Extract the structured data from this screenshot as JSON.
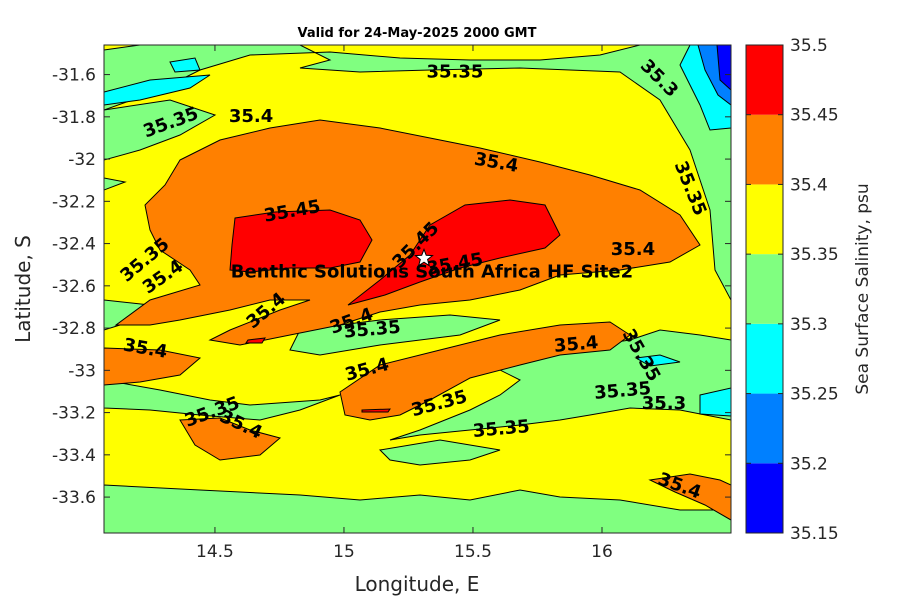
{
  "chart_data": {
    "type": "contour",
    "title": "Valid for 24-May-2025 2000 GMT",
    "xlabel": "Longitude, E",
    "ylabel": "Latitude, S",
    "xlim": [
      14.07,
      16.5
    ],
    "ylim": [
      -33.77,
      -31.46
    ],
    "xticks": [
      14.5,
      15,
      15.5,
      16
    ],
    "xtick_labels": [
      "14.5",
      "15",
      "15.5",
      "16"
    ],
    "yticks": [
      -31.6,
      -31.8,
      -32,
      -32.2,
      -32.4,
      -32.6,
      -32.8,
      -33,
      -33.2,
      -33.4,
      -33.6
    ],
    "ytick_labels": [
      "-31.6",
      "-31.8",
      "-32",
      "-32.2",
      "-32.4",
      "-32.6",
      "-32.8",
      "-33",
      "-33.2",
      "-33.4",
      "-33.6"
    ],
    "colorbar": {
      "label": "Sea Surface Salinity, psu",
      "levels": [
        35.15,
        35.2,
        35.25,
        35.3,
        35.35,
        35.4,
        35.45,
        35.5
      ],
      "tick_labels": [
        "35.15",
        "35.2",
        "35.25",
        "35.3",
        "35.35",
        "35.4",
        "35.45",
        "35.5"
      ],
      "colors": [
        "#0000ff",
        "#0080ff",
        "#00ffff",
        "#80ff80",
        "#ffff00",
        "#ff8000",
        "#ff0000"
      ]
    },
    "site": {
      "name": "Benthic Solutions South Africa HF Site2",
      "lon": 15.31,
      "lat": -32.47
    },
    "contour_labels": [
      {
        "text": "35.35",
        "lon": 15.43,
        "lat": -31.59,
        "angle": 0
      },
      {
        "text": "35.3",
        "lon": 16.22,
        "lat": -31.62,
        "angle": 45
      },
      {
        "text": "35.35",
        "lon": 14.33,
        "lat": -31.83,
        "angle": -20
      },
      {
        "text": "35.4",
        "lon": 14.64,
        "lat": -31.8,
        "angle": 0
      },
      {
        "text": "35.4",
        "lon": 15.59,
        "lat": -32.02,
        "angle": 10
      },
      {
        "text": "35.35",
        "lon": 16.34,
        "lat": -32.14,
        "angle": 68
      },
      {
        "text": "35.45",
        "lon": 14.8,
        "lat": -32.25,
        "angle": -10
      },
      {
        "text": "35.45",
        "lon": 15.28,
        "lat": -32.41,
        "angle": -45
      },
      {
        "text": "35.45",
        "lon": 15.43,
        "lat": -32.5,
        "angle": -10
      },
      {
        "text": "35.4",
        "lon": 16.12,
        "lat": -32.43,
        "angle": 0
      },
      {
        "text": "35.35",
        "lon": 14.23,
        "lat": -32.48,
        "angle": -40
      },
      {
        "text": "35.4",
        "lon": 14.3,
        "lat": -32.56,
        "angle": -35
      },
      {
        "text": "35.4",
        "lon": 14.7,
        "lat": -32.72,
        "angle": -40
      },
      {
        "text": "35.4",
        "lon": 15.03,
        "lat": -32.77,
        "angle": -20
      },
      {
        "text": "35.35",
        "lon": 15.11,
        "lat": -32.81,
        "angle": -5
      },
      {
        "text": "35.4",
        "lon": 14.23,
        "lat": -32.9,
        "angle": 10
      },
      {
        "text": "35.4",
        "lon": 15.9,
        "lat": -32.88,
        "angle": -5
      },
      {
        "text": "35.35",
        "lon": 16.15,
        "lat": -32.93,
        "angle": 60
      },
      {
        "text": "35.4",
        "lon": 15.09,
        "lat": -33.0,
        "angle": -15
      },
      {
        "text": "35.35",
        "lon": 16.08,
        "lat": -33.1,
        "angle": -5
      },
      {
        "text": "35.3",
        "lon": 16.24,
        "lat": -33.16,
        "angle": 0
      },
      {
        "text": "35.35",
        "lon": 15.37,
        "lat": -33.16,
        "angle": -15
      },
      {
        "text": "35.35",
        "lon": 14.49,
        "lat": -33.2,
        "angle": -20
      },
      {
        "text": "35.4",
        "lon": 14.6,
        "lat": -33.26,
        "angle": 25
      },
      {
        "text": "35.35",
        "lon": 15.61,
        "lat": -33.28,
        "angle": -5
      },
      {
        "text": "35.4",
        "lon": 16.3,
        "lat": -33.55,
        "angle": 20
      }
    ]
  }
}
